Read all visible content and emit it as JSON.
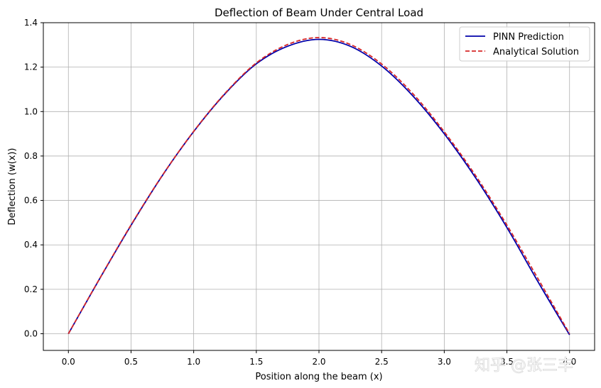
{
  "chart_data": {
    "type": "line",
    "title": "Deflection of Beam Under Central Load",
    "xlabel": "Position along the beam (x)",
    "ylabel": "Deflection (w(x))",
    "xlim": [
      -0.2,
      4.2
    ],
    "ylim": [
      -0.075,
      1.4
    ],
    "xticks": [
      "0.0",
      "0.5",
      "1.0",
      "1.5",
      "2.0",
      "2.5",
      "3.0",
      "3.5",
      "4.0"
    ],
    "xtick_values": [
      0,
      0.5,
      1,
      1.5,
      2,
      2.5,
      3,
      3.5,
      4
    ],
    "yticks": [
      "0.0",
      "0.2",
      "0.4",
      "0.6",
      "0.8",
      "1.0",
      "1.2",
      "1.4"
    ],
    "ytick_values": [
      0,
      0.2,
      0.4,
      0.6,
      0.8,
      1.0,
      1.2,
      1.4
    ],
    "grid": true,
    "legend_position": "top-right",
    "x": [
      0,
      0.25,
      0.5,
      0.75,
      1.0,
      1.25,
      1.5,
      1.75,
      2.0,
      2.25,
      2.5,
      2.75,
      3.0,
      3.25,
      3.5,
      3.75,
      4.0
    ],
    "series": [
      {
        "name": "PINN Prediction",
        "color": "#0000aa",
        "style": "solid",
        "values": [
          0.0,
          0.248,
          0.488,
          0.712,
          0.91,
          1.08,
          1.215,
          1.294,
          1.325,
          1.294,
          1.205,
          1.07,
          0.9,
          0.702,
          0.478,
          0.232,
          -0.005
        ]
      },
      {
        "name": "Analytical Solution",
        "color": "#d62728",
        "style": "dashed",
        "values": [
          0.0,
          0.249,
          0.49,
          0.713,
          0.911,
          1.082,
          1.219,
          1.302,
          1.333,
          1.302,
          1.214,
          1.08,
          0.909,
          0.712,
          0.489,
          0.246,
          0.0
        ]
      }
    ]
  },
  "watermark": "知乎 @张三丰"
}
